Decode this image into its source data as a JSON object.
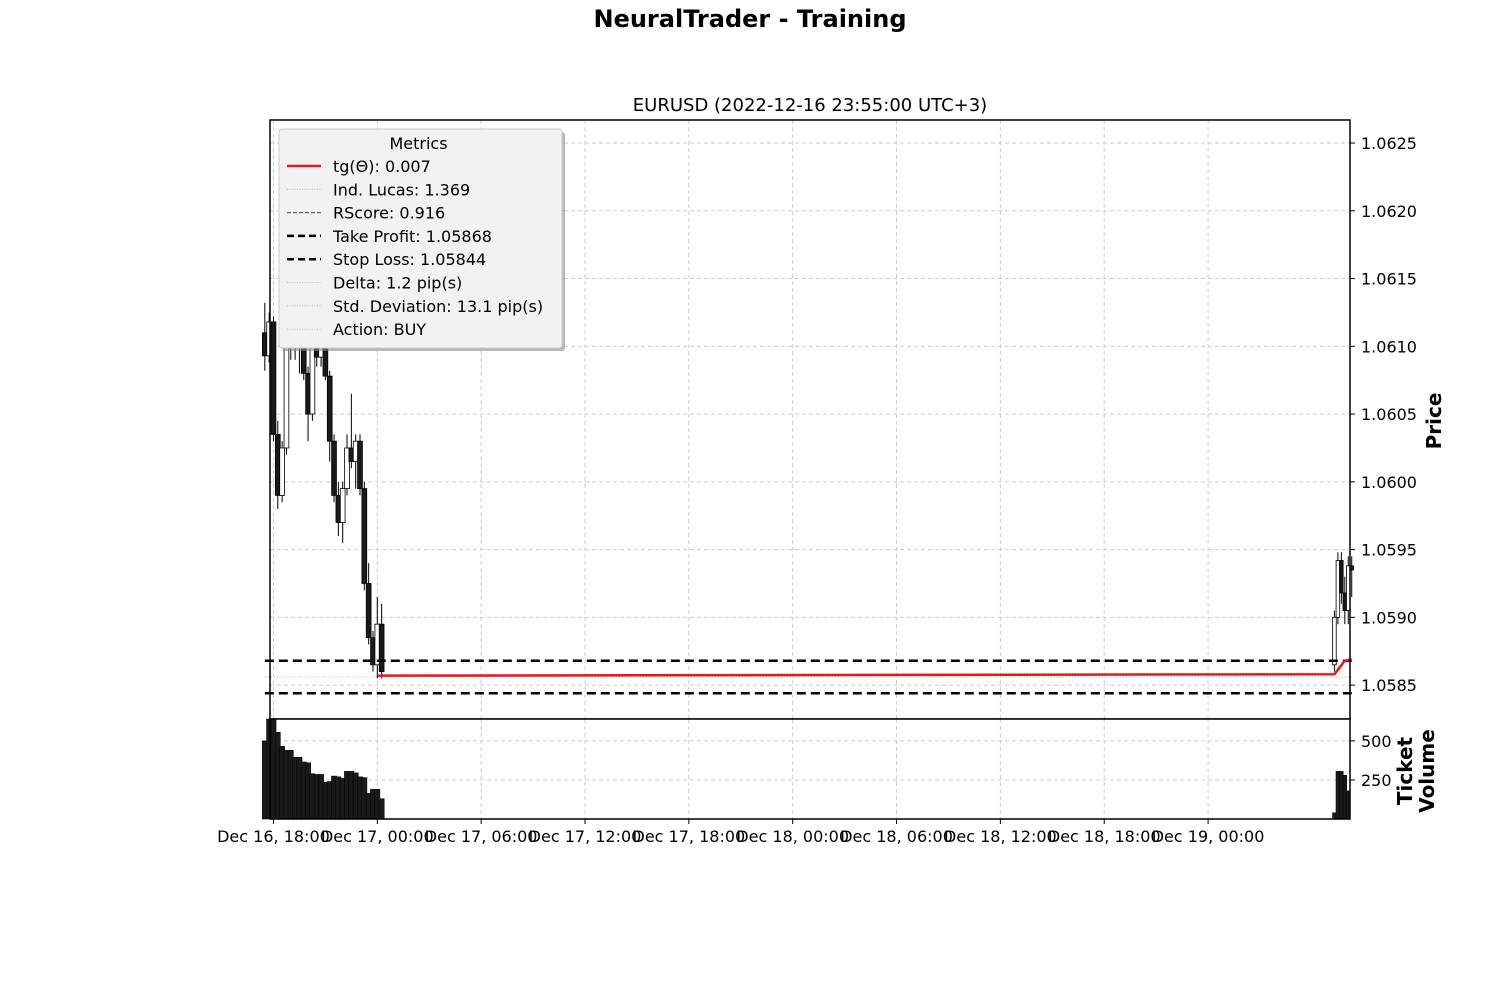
{
  "figure": {
    "suptitle": "NeuralTrader - Training"
  },
  "chart_data": {
    "type": "candlestick",
    "title": "EURUSD (2022-12-16 23:55:00 UTC+3)",
    "x_axis": {
      "tick_labels": [
        "Dec 16, 18:00",
        "Dec 17, 00:00",
        "Dec 17, 06:00",
        "Dec 17, 12:00",
        "Dec 17, 18:00",
        "Dec 18, 00:00",
        "Dec 18, 06:00",
        "Dec 18, 12:00",
        "Dec 18, 18:00",
        "Dec 19, 00:00"
      ],
      "tick_hours": [
        18,
        24,
        30,
        36,
        42,
        48,
        54,
        60,
        66,
        72
      ],
      "xlim_hours": [
        17.8,
        80.2
      ]
    },
    "price_axis": {
      "label": "Price",
      "ylim": [
        1.05825,
        1.06267
      ],
      "ticks": [
        1.0585,
        1.059,
        1.0595,
        1.06,
        1.0605,
        1.061,
        1.0615,
        1.062,
        1.0625
      ],
      "tick_labels": [
        "1.0585",
        "1.0590",
        "1.0595",
        "1.0600",
        "1.0605",
        "1.0610",
        "1.0615",
        "1.0620",
        "1.0625"
      ],
      "grid": true
    },
    "volume_axis": {
      "label_line1": "Ticket",
      "label_line2": "Volume",
      "ylim": [
        0,
        640
      ],
      "ticks": [
        250,
        500
      ],
      "tick_labels": [
        "250",
        "500"
      ],
      "grid": true
    },
    "candles": [
      {
        "t": 17.5,
        "o": 1.0611,
        "h": 1.06132,
        "l": 1.06082,
        "c": 1.06093
      },
      {
        "t": 17.75,
        "o": 1.06093,
        "h": 1.06125,
        "l": 1.06088,
        "c": 1.06118
      },
      {
        "t": 18.0,
        "o": 1.06118,
        "h": 1.06122,
        "l": 1.0603,
        "c": 1.06035
      },
      {
        "t": 18.25,
        "o": 1.06035,
        "h": 1.06045,
        "l": 1.0598,
        "c": 1.0599
      },
      {
        "t": 18.5,
        "o": 1.0599,
        "h": 1.0603,
        "l": 1.05985,
        "c": 1.06025
      },
      {
        "t": 18.75,
        "o": 1.06025,
        "h": 1.0611,
        "l": 1.0602,
        "c": 1.061
      },
      {
        "t": 19.0,
        "o": 1.061,
        "h": 1.0613,
        "l": 1.0609,
        "c": 1.06122
      },
      {
        "t": 19.25,
        "o": 1.06122,
        "h": 1.06128,
        "l": 1.0609,
        "c": 1.061
      },
      {
        "t": 19.5,
        "o": 1.061,
        "h": 1.0612,
        "l": 1.0608,
        "c": 1.06115
      },
      {
        "t": 19.75,
        "o": 1.06115,
        "h": 1.06118,
        "l": 1.06075,
        "c": 1.0608
      },
      {
        "t": 20.0,
        "o": 1.0608,
        "h": 1.06085,
        "l": 1.0603,
        "c": 1.0605
      },
      {
        "t": 20.25,
        "o": 1.0605,
        "h": 1.0611,
        "l": 1.06045,
        "c": 1.061
      },
      {
        "t": 20.5,
        "o": 1.061,
        "h": 1.06115,
        "l": 1.06085,
        "c": 1.06092
      },
      {
        "t": 20.75,
        "o": 1.06092,
        "h": 1.0611,
        "l": 1.06085,
        "c": 1.061
      },
      {
        "t": 21.0,
        "o": 1.061,
        "h": 1.06112,
        "l": 1.06075,
        "c": 1.06078
      },
      {
        "t": 21.25,
        "o": 1.06078,
        "h": 1.06082,
        "l": 1.06015,
        "c": 1.0603
      },
      {
        "t": 21.5,
        "o": 1.0603,
        "h": 1.06035,
        "l": 1.05985,
        "c": 1.0599
      },
      {
        "t": 21.75,
        "o": 1.0599,
        "h": 1.06,
        "l": 1.0596,
        "c": 1.0597
      },
      {
        "t": 22.0,
        "o": 1.0597,
        "h": 1.06,
        "l": 1.05955,
        "c": 1.05995
      },
      {
        "t": 22.25,
        "o": 1.05995,
        "h": 1.06035,
        "l": 1.0599,
        "c": 1.06025
      },
      {
        "t": 22.5,
        "o": 1.06025,
        "h": 1.06065,
        "l": 1.0601,
        "c": 1.06015
      },
      {
        "t": 22.75,
        "o": 1.06015,
        "h": 1.06035,
        "l": 1.05995,
        "c": 1.0603
      },
      {
        "t": 23.0,
        "o": 1.0603,
        "h": 1.06035,
        "l": 1.0599,
        "c": 1.05995
      },
      {
        "t": 23.25,
        "o": 1.05995,
        "h": 1.06,
        "l": 1.0592,
        "c": 1.05925
      },
      {
        "t": 23.5,
        "o": 1.05925,
        "h": 1.0594,
        "l": 1.0588,
        "c": 1.05885
      },
      {
        "t": 23.75,
        "o": 1.05885,
        "h": 1.0589,
        "l": 1.0586,
        "c": 1.05865
      },
      {
        "t": 24.0,
        "o": 1.05865,
        "h": 1.05915,
        "l": 1.05855,
        "c": 1.05895
      },
      {
        "t": 24.25,
        "o": 1.05895,
        "h": 1.0591,
        "l": 1.05855,
        "c": 1.0586
      }
    ],
    "candles_later": [
      {
        "t": 79.3,
        "o": 1.05865,
        "h": 1.05905,
        "l": 1.0586,
        "c": 1.059
      },
      {
        "t": 79.5,
        "o": 1.059,
        "h": 1.05948,
        "l": 1.05895,
        "c": 1.05942
      },
      {
        "t": 79.7,
        "o": 1.05942,
        "h": 1.05948,
        "l": 1.0591,
        "c": 1.05918
      },
      {
        "t": 79.9,
        "o": 1.05918,
        "h": 1.0593,
        "l": 1.05895,
        "c": 1.05905
      },
      {
        "t": 80.1,
        "o": 1.05905,
        "h": 1.05945,
        "l": 1.05895,
        "c": 1.05938
      },
      {
        "t": 80.3,
        "o": 1.05938,
        "h": 1.05945,
        "l": 1.05915,
        "c": 1.05935
      }
    ],
    "volume": {
      "early": [
        {
          "t": 17.5,
          "v": 500
        },
        {
          "t": 17.75,
          "v": 640
        },
        {
          "t": 18.0,
          "v": 640
        },
        {
          "t": 18.25,
          "v": 555
        },
        {
          "t": 18.5,
          "v": 465
        },
        {
          "t": 18.75,
          "v": 440
        },
        {
          "t": 19.0,
          "v": 440
        },
        {
          "t": 19.25,
          "v": 395
        },
        {
          "t": 19.5,
          "v": 395
        },
        {
          "t": 19.75,
          "v": 365
        },
        {
          "t": 20.0,
          "v": 360
        },
        {
          "t": 20.25,
          "v": 290
        },
        {
          "t": 20.5,
          "v": 285
        },
        {
          "t": 20.75,
          "v": 285
        },
        {
          "t": 21.0,
          "v": 235
        },
        {
          "t": 21.25,
          "v": 240
        },
        {
          "t": 21.5,
          "v": 275
        },
        {
          "t": 21.75,
          "v": 270
        },
        {
          "t": 22.0,
          "v": 260
        },
        {
          "t": 22.25,
          "v": 305
        },
        {
          "t": 22.5,
          "v": 305
        },
        {
          "t": 22.75,
          "v": 295
        },
        {
          "t": 23.0,
          "v": 270
        },
        {
          "t": 23.25,
          "v": 265
        },
        {
          "t": 23.5,
          "v": 165
        },
        {
          "t": 23.75,
          "v": 190
        },
        {
          "t": 24.0,
          "v": 190
        },
        {
          "t": 24.25,
          "v": 130
        }
      ],
      "late": [
        {
          "t": 79.3,
          "v": 40
        },
        {
          "t": 79.5,
          "v": 305
        },
        {
          "t": 79.7,
          "v": 305
        },
        {
          "t": 79.9,
          "v": 280
        },
        {
          "t": 80.1,
          "v": 180
        }
      ]
    },
    "lines": {
      "take_profit": 1.05868,
      "stop_loss": 1.05844,
      "trend": [
        {
          "t": 24.0,
          "p": 1.05857
        },
        {
          "t": 79.3,
          "p": 1.05858
        },
        {
          "t": 79.9,
          "p": 1.05868
        },
        {
          "t": 80.3,
          "p": 1.05869
        }
      ],
      "thin_dotted": 1.05856
    },
    "legend": {
      "title": "Metrics",
      "placement": "upper-left",
      "entries": [
        {
          "label": "tg(Θ): 0.007",
          "style": "solid",
          "color": "#e31a1c"
        },
        {
          "label": "Ind. Lucas: 1.369",
          "style": "dotted-thin",
          "color": "#aaaaaa"
        },
        {
          "label": "RScore: 0.916",
          "style": "dashed-thin",
          "color": "#666666"
        },
        {
          "label": "Take Profit: 1.05868",
          "style": "dashed-bold",
          "color": "#000000"
        },
        {
          "label": "Stop Loss: 1.05844",
          "style": "dashed-bold",
          "color": "#000000"
        },
        {
          "label": "Delta: 1.2 pip(s)",
          "style": "dotted-thin",
          "color": "#aaaaaa"
        },
        {
          "label": "Std. Deviation: 13.1 pip(s)",
          "style": "dotted-thin",
          "color": "#aaaaaa"
        },
        {
          "label": "Action: BUY",
          "style": "dotted-thin",
          "color": "#aaaaaa"
        }
      ]
    },
    "colors": {
      "up_fill": "#ffffff",
      "down_fill": "#1a1a1a",
      "trend": "#e31a1c",
      "grid": "#cccccc",
      "legend_bg": "#f2f2f2"
    }
  }
}
